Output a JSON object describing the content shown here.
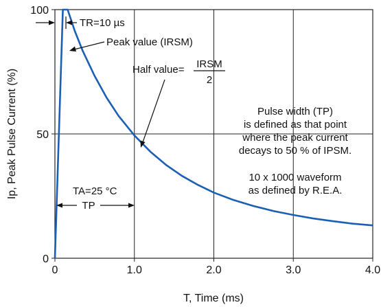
{
  "chart_data": {
    "type": "line",
    "xlabel": "T, Time (ms)",
    "ylabel": "Ip, Peak Pulse Current (%)",
    "xlim": [
      0,
      4.0
    ],
    "ylim": [
      0,
      100
    ],
    "grid": true,
    "x_ticks": [
      "0",
      "1.0",
      "2.0",
      "3.0",
      "4.0"
    ],
    "y_ticks": [
      "0",
      "50",
      "100"
    ],
    "series": [
      {
        "x": [
          0,
          0.1,
          0.16,
          0.25,
          0.35,
          0.5,
          0.65,
          0.8,
          1.0,
          1.2,
          1.4,
          1.6,
          1.8,
          2.0,
          2.25,
          2.5,
          2.75,
          3.0,
          3.25,
          3.5,
          3.75,
          4.0
        ],
        "y": [
          0,
          100,
          100,
          91.4,
          83.4,
          73.3,
          64.6,
          57.3,
          49.4,
          42.9,
          37.5,
          33.1,
          29.5,
          26.4,
          23.4,
          21.0,
          19.0,
          17.4,
          16.0,
          14.9,
          13.9,
          13.2
        ]
      }
    ],
    "annotations": {
      "tr": "TR=10 µs",
      "peak": "Peak value (IRSM)",
      "half_prefix": "Half value=",
      "half_num": "IRSM",
      "half_den": "2",
      "pw_line1": "Pulse width (TP)",
      "pw_line2": "is defined as that point",
      "pw_line3": "where the peak current",
      "pw_line4": "decays to 50 % of IPSM.",
      "wf_line1": "10 x 1000 waveform",
      "wf_line2": "as defined by R.E.A.",
      "ta": "TA=25 °C",
      "tp": "TP"
    }
  }
}
